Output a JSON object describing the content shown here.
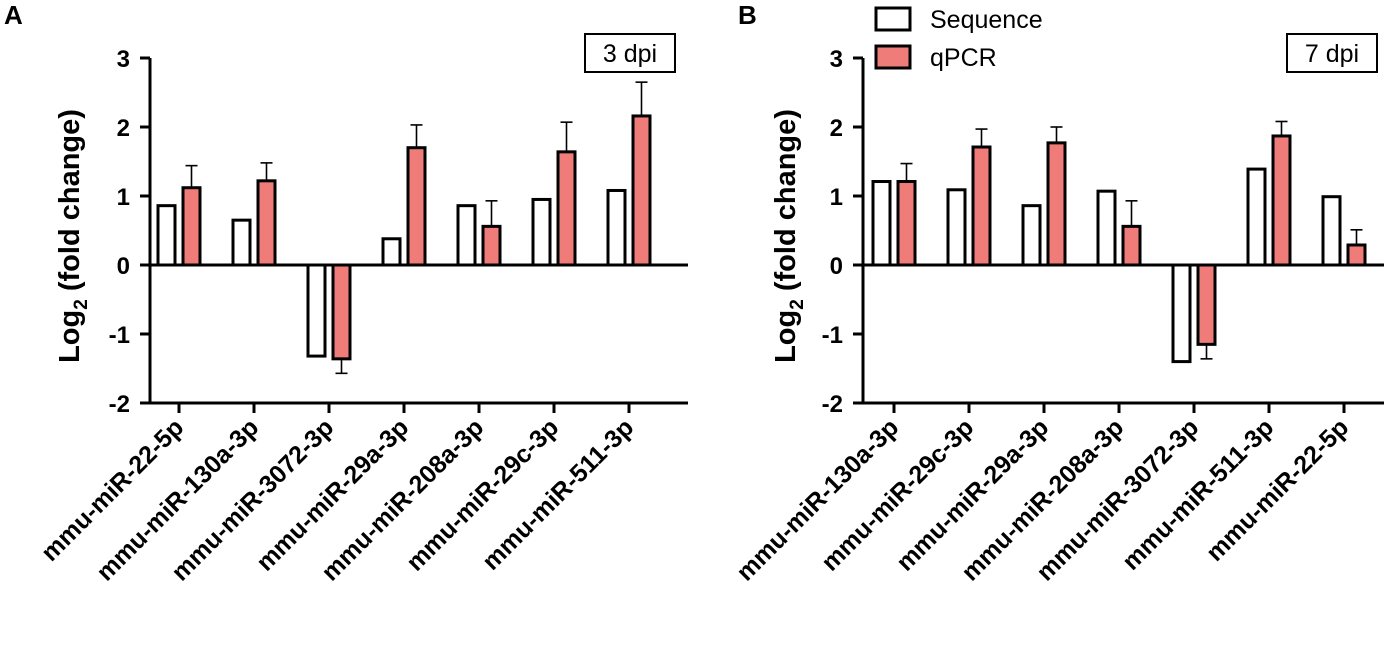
{
  "legend": {
    "items": [
      {
        "name": "Sequence",
        "color": "#ffffff"
      },
      {
        "name": "qPCR",
        "color": "#f07c7a"
      }
    ]
  },
  "chart_data": [
    {
      "panel": "A",
      "type": "bar",
      "annotation": "3 dpi",
      "ylabel": "Log",
      "ylabel_sub": "2",
      "ylabel_rest": " (fold change)",
      "ylim": [
        -2,
        3
      ],
      "yticks": [
        "-2",
        "-1",
        "0",
        "1",
        "2",
        "3"
      ],
      "categories": [
        "mmu-miR-22-5p",
        "mmu-miR-130a-3p",
        "mmu-miR-3072-3p",
        "mmu-miR-29a-3p",
        "mmu-miR-208a-3p",
        "mmu-miR-29c-3p",
        "mmu-miR-511-3p"
      ],
      "series": [
        {
          "name": "Sequence",
          "values": [
            0.86,
            0.65,
            -1.32,
            0.38,
            0.86,
            0.95,
            1.08
          ]
        },
        {
          "name": "qPCR",
          "values": [
            1.12,
            1.22,
            -1.36,
            1.7,
            0.56,
            1.64,
            2.16
          ],
          "errors": [
            0.32,
            0.26,
            0.21,
            0.33,
            0.37,
            0.43,
            0.49
          ]
        }
      ]
    },
    {
      "panel": "B",
      "type": "bar",
      "annotation": "7 dpi",
      "ylabel": "Log",
      "ylabel_sub": "2",
      "ylabel_rest": " (fold change)",
      "ylim": [
        -2,
        3
      ],
      "yticks": [
        "-2",
        "-1",
        "0",
        "1",
        "2",
        "3"
      ],
      "categories": [
        "mmu-miR-130a-3p",
        "mmu-miR-29c-3p",
        "mmu-miR-29a-3p",
        "mmu-miR-208a-3p",
        "mmu-miR-3072-3p",
        "mmu-miR-511-3p",
        "mmu-miR-22-5p"
      ],
      "series": [
        {
          "name": "Sequence",
          "values": [
            1.21,
            1.09,
            0.86,
            1.07,
            -1.4,
            1.39,
            0.99
          ]
        },
        {
          "name": "qPCR",
          "values": [
            1.21,
            1.71,
            1.77,
            0.56,
            -1.15,
            1.87,
            0.29
          ],
          "errors": [
            0.26,
            0.26,
            0.23,
            0.37,
            0.21,
            0.21,
            0.22
          ]
        }
      ]
    }
  ]
}
